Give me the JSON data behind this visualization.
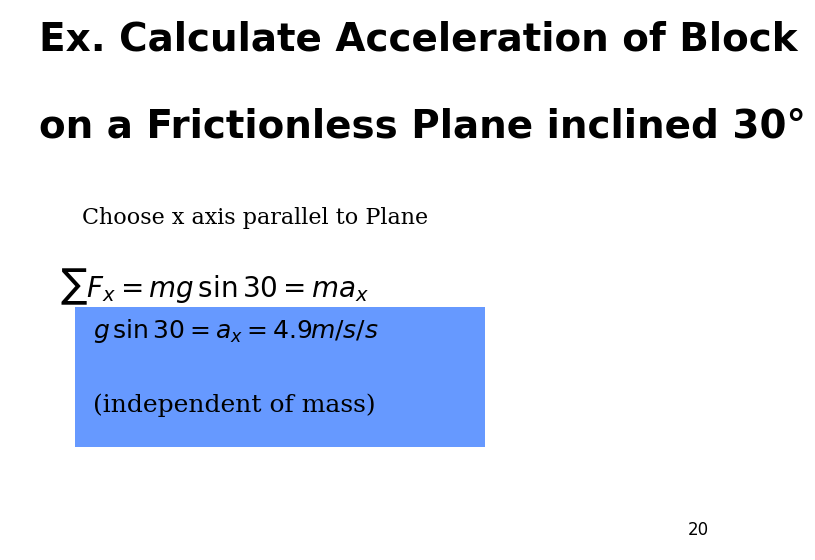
{
  "bg_color": "#ffffff",
  "title_line1": "Ex. Calculate Acceleration of Block",
  "title_line2": "on a Frictionless Plane inclined 30°",
  "title_fontsize": 28,
  "title_fontfamily": "sans-serif",
  "title_bold": true,
  "subtitle": "Choose x axis parallel to Plane",
  "subtitle_fontsize": 16,
  "highlight_text2": "(independent of mass)",
  "highlight_fontsize": 18,
  "highlight_bg": "#6699ff",
  "page_number": "20",
  "page_fontsize": 12
}
